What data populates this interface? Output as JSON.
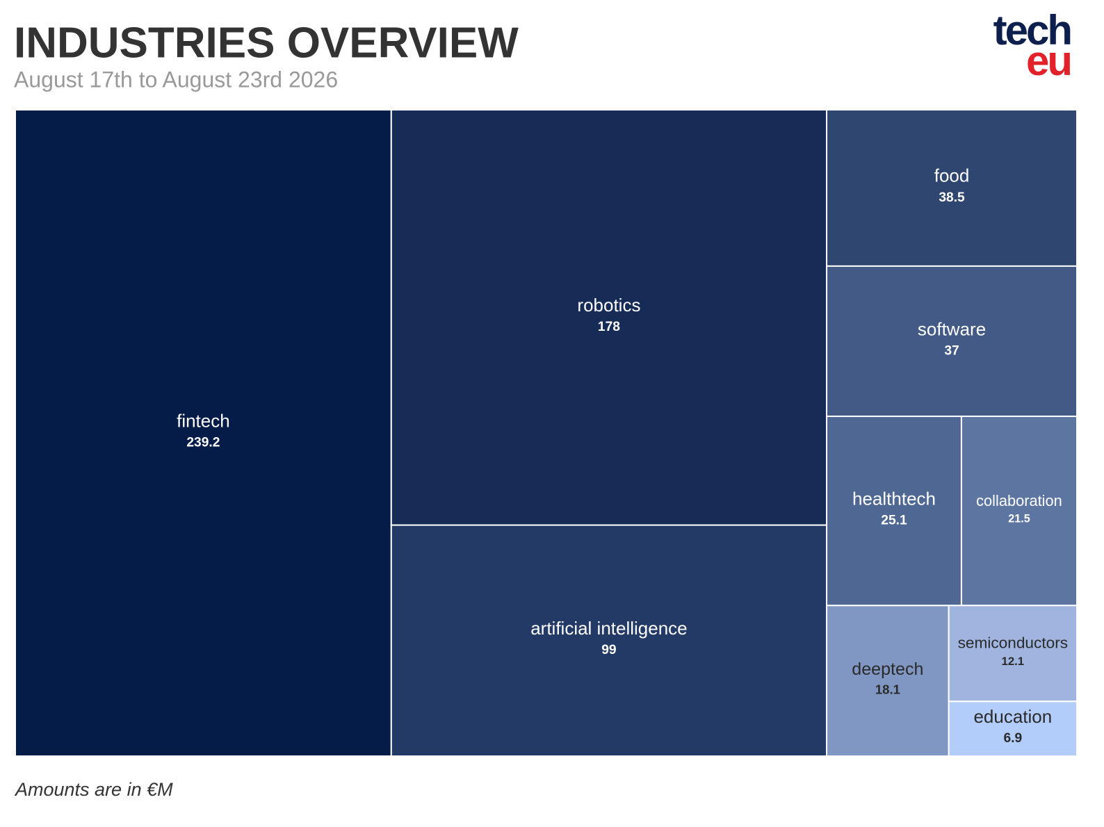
{
  "chart_data": {
    "type": "treemap",
    "title": "INDUSTRIES OVERVIEW",
    "subtitle": "August 17th to August 23rd 2026",
    "logo": {
      "top": "tech",
      "bottom": "eu"
    },
    "footnote": "Amounts are in €M",
    "categories": [
      "fintech",
      "robotics",
      "artificial intelligence",
      "food",
      "software",
      "healthtech",
      "collaboration",
      "deeptech",
      "semiconductors",
      "education"
    ],
    "values": [
      239.2,
      178,
      99,
      38.5,
      37,
      25.1,
      21.5,
      18.1,
      12.1,
      6.9
    ],
    "colors": [
      "#051c48",
      "#162b55",
      "#233a66",
      "#2f4670",
      "#425a85",
      "#4f6893",
      "#5d75a1",
      "#7f97c2",
      "#9fb4de",
      "#b3cdfb"
    ]
  }
}
